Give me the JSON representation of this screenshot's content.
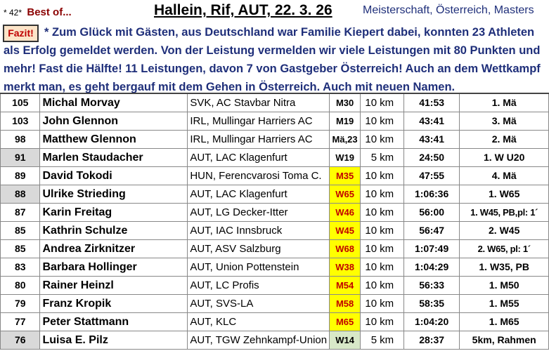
{
  "header": {
    "number": "* 42*",
    "best_of": "Best of...",
    "title": "Hallein, Rif, AUT, 22. 3. 26",
    "subtitle": "Meisterschaft, Österreich, Masters"
  },
  "fazit_label": "Fazit!",
  "summary": "* Zum Glück mit Gästen, aus Deutschland war Familie Kiepert dabei, konnten 23 Athleten als Erfolg gemeldet werden. Von der Leistung vermelden wir viele Leistungen mit 80 Punkten und mehr! Fast die Hälfte! 11 Leistungen, davon 7 von Gastgeber Österreich! Auch an dem Wettkampf merkt man, es geht bergauf mit dem Gehen in Österreich. Auch mit neuen Namen.",
  "colors": {
    "highlight_cat": "#ffff00",
    "cat_text_red": "#c00000",
    "green_cat": "#d8e8c8",
    "grey_points": "#d9d9d9",
    "text_blue": "#1f2f7a"
  },
  "rows": [
    {
      "points": "105",
      "name": "Michal Morvay",
      "club": "SVK, AC Stavbar Nitra",
      "cat": "M30",
      "dist": "10",
      "unit": "km",
      "time": "41:53",
      "place": "1. Mä"
    },
    {
      "points": "103",
      "name": "John Glennon",
      "club": "IRL, Mullingar Harriers AC",
      "cat": "M19",
      "dist": "10",
      "unit": "km",
      "time": "43:41",
      "place": "3. Mä"
    },
    {
      "points": "98",
      "name": "Matthew Glennon",
      "club": "IRL, Mullingar Harriers AC",
      "cat": "Mä,23",
      "dist": "10",
      "unit": "km",
      "time": "43:41",
      "place": "2. Mä"
    },
    {
      "points": "91",
      "name": "Marlen Staudacher",
      "club": "AUT, LAC Klagenfurt",
      "cat": "W19",
      "dist": "5",
      "unit": "km",
      "time": "24:50",
      "place": "1. W U20"
    },
    {
      "points": "89",
      "name": "David Tokodi",
      "club": "HUN, Ferencvarosi Toma C.",
      "cat": "M35",
      "dist": "10",
      "unit": "km",
      "time": "47:55",
      "place": "4. Mä"
    },
    {
      "points": "88",
      "name": "Ulrike Strieding",
      "club": "AUT, LAC Klagenfurt",
      "cat": "W65",
      "dist": "10",
      "unit": "km",
      "time": "1:06:36",
      "place": "1. W65"
    },
    {
      "points": "87",
      "name": "Karin Freitag",
      "club": "AUT, LG Decker-Itter",
      "cat": "W46",
      "dist": "10",
      "unit": "km",
      "time": "56:00",
      "place": "1. W45, PB,pl: 1´"
    },
    {
      "points": "85",
      "name": "Kathrin Schulze",
      "club": "AUT, IAC Innsbruck",
      "cat": "W45",
      "dist": "10",
      "unit": "km",
      "time": "56:47",
      "place": "2. W45"
    },
    {
      "points": "85",
      "name": "Andrea Zirknitzer",
      "club": "AUT, ASV Salzburg",
      "cat": "W68",
      "dist": "10",
      "unit": "km",
      "time": "1:07:49",
      "place": "2. W65, pl: 1´"
    },
    {
      "points": "83",
      "name": "Barbara Hollinger",
      "club": "AUT, Union Pottenstein",
      "cat": "W38",
      "dist": "10",
      "unit": "km",
      "time": "1:04:29",
      "place": "1. W35, PB"
    },
    {
      "points": "80",
      "name": "Rainer Heinzl",
      "club": "AUT, LC Profis",
      "cat": "M54",
      "dist": "10",
      "unit": "km",
      "time": "56:33",
      "place": "1. M50"
    },
    {
      "points": "79",
      "name": "Franz Kropik",
      "club": "AUT, SVS-LA",
      "cat": "M58",
      "dist": "10",
      "unit": "km",
      "time": "58:35",
      "place": "1. M55"
    },
    {
      "points": "77",
      "name": "Peter Stattmann",
      "club": "AUT, KLC",
      "cat": "M65",
      "dist": "10",
      "unit": "km",
      "time": "1:04:20",
      "place": "1. M65"
    },
    {
      "points": "76",
      "name": "Luisa E. Pilz",
      "club": "AUT, TGW Zehnkampf-Union",
      "cat": "W14",
      "dist": "5",
      "unit": "km",
      "time": "28:37",
      "place": "5km, Rahmen"
    }
  ]
}
